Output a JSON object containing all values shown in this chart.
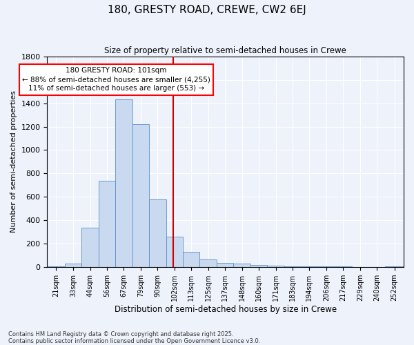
{
  "title": "180, GRESTY ROAD, CREWE, CW2 6EJ",
  "subtitle": "Size of property relative to semi-detached houses in Crewe",
  "xlabel": "Distribution of semi-detached houses by size in Crewe",
  "ylabel": "Number of semi-detached properties",
  "footnote1": "Contains HM Land Registry data © Crown copyright and database right 2025.",
  "footnote2": "Contains public sector information licensed under the Open Government Licence v3.0.",
  "annotation_title": "180 GRESTY ROAD: 101sqm",
  "annotation_line1": "← 88% of semi-detached houses are smaller (4,255)",
  "annotation_line2": "11% of semi-detached houses are larger (553) →",
  "vline_x": 101,
  "bar_color": "#c8d9f0",
  "bar_edgecolor": "#5b8fc9",
  "vline_color": "#cc0000",
  "background_color": "#eef2fb",
  "grid_color": "#ffffff",
  "categories": [
    "21sqm",
    "33sqm",
    "44sqm",
    "56sqm",
    "67sqm",
    "79sqm",
    "90sqm",
    "102sqm",
    "113sqm",
    "125sqm",
    "137sqm",
    "148sqm",
    "160sqm",
    "171sqm",
    "183sqm",
    "194sqm",
    "206sqm",
    "217sqm",
    "229sqm",
    "240sqm",
    "252sqm"
  ],
  "bin_edges": [
    15,
    27,
    38.5,
    50,
    61.5,
    73,
    84.5,
    96,
    107.5,
    119,
    130.5,
    142,
    153.5,
    165,
    176.5,
    188,
    199.5,
    211,
    222.5,
    234,
    245.5,
    258
  ],
  "values": [
    10,
    30,
    340,
    740,
    1430,
    1220,
    580,
    260,
    130,
    65,
    35,
    30,
    20,
    15,
    10,
    8,
    5,
    5,
    3,
    2,
    10
  ],
  "ylim": [
    0,
    1800
  ],
  "yticks": [
    0,
    200,
    400,
    600,
    800,
    1000,
    1200,
    1400,
    1600,
    1800
  ],
  "title_fontsize": 11,
  "subtitle_fontsize": 8.5,
  "ylabel_fontsize": 8,
  "xlabel_fontsize": 8.5,
  "tick_fontsize": 8,
  "xtick_fontsize": 7,
  "footnote_fontsize": 6,
  "annot_fontsize": 7.5
}
